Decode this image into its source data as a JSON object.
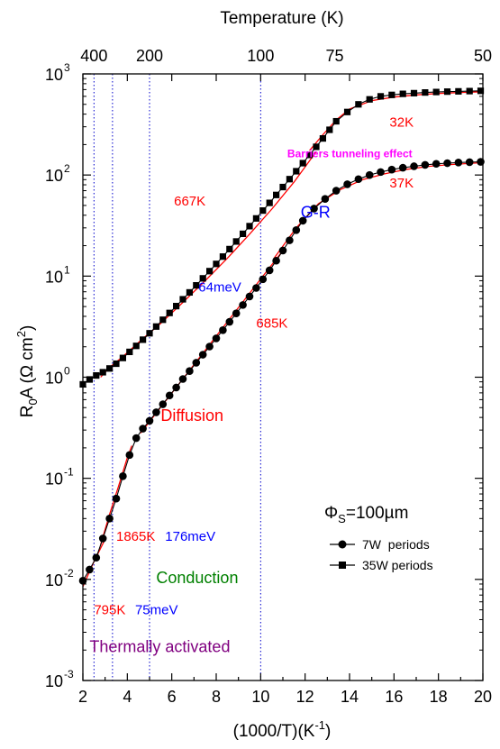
{
  "chart_data": {
    "type": "scatter",
    "xlabel": "(1000/T)(K",
    "xlabel_sup": "-1",
    "xlabel_end": ")",
    "ylabel_main": "R",
    "ylabel_sub": "0",
    "ylabel_rest": "A (Ω cm",
    "ylabel_sup": "2",
    "ylabel_end": ")",
    "top_axis_label": "Temperature (K)",
    "x_range": [
      2,
      20
    ],
    "y_range": [
      0.001,
      1000
    ],
    "y_scale": "log",
    "x_ticks": [
      2,
      4,
      6,
      8,
      10,
      12,
      14,
      16,
      18,
      20
    ],
    "x_tick_labels": [
      "2",
      "4",
      "6",
      "8",
      "10",
      "12",
      "14",
      "16",
      "18",
      "20"
    ],
    "y_ticks": [
      {
        "value": 0.001,
        "base": "10",
        "exp": "-3"
      },
      {
        "value": 0.01,
        "base": "10",
        "exp": "-2"
      },
      {
        "value": 0.1,
        "base": "10",
        "exp": "-1"
      },
      {
        "value": 1,
        "base": "10",
        "exp": "0"
      },
      {
        "value": 10,
        "base": "10",
        "exp": "1"
      },
      {
        "value": 100,
        "base": "10",
        "exp": "2"
      },
      {
        "value": 1000,
        "base": "10",
        "exp": "3"
      }
    ],
    "top_ticks": [
      {
        "x": 2.5,
        "label": "400"
      },
      {
        "x": 5.0,
        "label": "200"
      },
      {
        "x": 10.0,
        "label": "100"
      },
      {
        "x": 13.333,
        "label": "75"
      },
      {
        "x": 20.0,
        "label": "50"
      }
    ],
    "vertical_dotted_lines": [
      2.5,
      3.333,
      5.0,
      10.0
    ],
    "legend_position": "bottom-right",
    "series": [
      {
        "name": "7W  periods",
        "marker": "circle",
        "x": [
          2.0,
          2.3,
          2.6,
          2.9,
          3.2,
          3.5,
          3.8,
          4.1,
          4.4,
          4.7,
          5.0,
          5.3,
          5.6,
          5.9,
          6.2,
          6.5,
          6.8,
          7.1,
          7.4,
          7.7,
          8.0,
          8.3,
          8.6,
          8.9,
          9.2,
          9.5,
          9.8,
          10.1,
          10.4,
          10.7,
          11.0,
          11.3,
          11.6,
          11.9,
          12.4,
          12.9,
          13.4,
          13.9,
          14.4,
          14.9,
          15.4,
          15.9,
          16.4,
          16.9,
          17.4,
          17.9,
          18.4,
          18.9,
          19.4,
          19.9
        ],
        "values": [
          0.0097,
          0.0125,
          0.0164,
          0.0254,
          0.04,
          0.063,
          0.105,
          0.17,
          0.25,
          0.31,
          0.37,
          0.45,
          0.54,
          0.66,
          0.79,
          0.96,
          1.15,
          1.39,
          1.67,
          2.01,
          2.42,
          2.92,
          3.53,
          4.28,
          5.18,
          6.29,
          7.63,
          9.3,
          11.4,
          14.2,
          17.9,
          22.6,
          28.5,
          35.3,
          46.5,
          58,
          70,
          81,
          91,
          100,
          107,
          113,
          118,
          122,
          126,
          129,
          131,
          133,
          134,
          135
        ]
      },
      {
        "name": "35W periods",
        "marker": "square",
        "x": [
          2.0,
          2.3,
          2.6,
          2.9,
          3.2,
          3.5,
          3.8,
          4.1,
          4.4,
          4.7,
          5.0,
          5.3,
          5.6,
          5.9,
          6.2,
          6.5,
          6.8,
          7.1,
          7.4,
          7.7,
          8.0,
          8.3,
          8.6,
          8.9,
          9.2,
          9.5,
          9.8,
          10.1,
          10.4,
          10.7,
          11.0,
          11.3,
          11.6,
          11.9,
          12.2,
          12.5,
          12.8,
          13.1,
          13.4,
          13.9,
          14.4,
          14.9,
          15.4,
          15.9,
          16.4,
          16.9,
          17.4,
          17.9,
          18.4,
          18.9,
          19.4,
          19.9
        ],
        "values": [
          0.85,
          0.95,
          1.04,
          1.12,
          1.22,
          1.36,
          1.55,
          1.78,
          2.04,
          2.35,
          2.72,
          3.17,
          3.7,
          4.32,
          5.05,
          5.9,
          6.9,
          8.1,
          9.5,
          11.2,
          13.2,
          15.6,
          18.5,
          22.0,
          26.2,
          31.2,
          37.2,
          44.5,
          53.0,
          63.5,
          76.0,
          91.0,
          109,
          131,
          158,
          190,
          230,
          280,
          340,
          420,
          500,
          560,
          600,
          620,
          635,
          645,
          655,
          662,
          668,
          672,
          676,
          680
        ]
      }
    ],
    "fit_lines": [
      {
        "x": [
          2.0,
          2.5,
          3.0
        ],
        "values": [
          0.0085,
          0.015,
          0.025
        ]
      },
      {
        "x": [
          2.8,
          3.2,
          3.6,
          4.0,
          4.2
        ],
        "values": [
          0.022,
          0.044,
          0.083,
          0.16,
          0.21
        ]
      },
      {
        "x": [
          4.6,
          11.0
        ],
        "values": [
          0.28,
          17.9
        ]
      },
      {
        "x": [
          10.6,
          11.6,
          12.6,
          13.6,
          14.6,
          15.6,
          16.6,
          17.6,
          18.6,
          19.6,
          20.0
        ],
        "values": [
          15,
          30,
          52,
          72,
          90,
          103,
          114,
          122,
          127,
          131,
          133
        ]
      },
      {
        "x": [
          2.8,
          3.2,
          3.8,
          4.6,
          5.5,
          6.5,
          7.5,
          8.5,
          9.5,
          10.5,
          11.5,
          12.5
        ],
        "values": [
          1.0,
          1.25,
          1.6,
          2.3,
          3.4,
          5.5,
          9.0,
          15.0,
          26.0,
          46.0,
          85.0,
          170.0
        ]
      },
      {
        "x": [
          12.2,
          12.8,
          13.4,
          14.0,
          15.0,
          16.0,
          17.0,
          18.0,
          19.0,
          20.0
        ],
        "values": [
          175,
          250,
          350,
          450,
          545,
          590,
          620,
          640,
          655,
          665
        ]
      }
    ],
    "annotations": [
      {
        "text": "32K",
        "x": 15.8,
        "y": 300,
        "color": "#ff0000",
        "size": 15,
        "weight": "normal"
      },
      {
        "text": "Barriers tunneling effect",
        "x": 11.2,
        "y": 150,
        "color": "#ff00ff",
        "size": 12,
        "weight": "bold"
      },
      {
        "text": "37K",
        "x": 15.8,
        "y": 75,
        "color": "#ff0000",
        "size": 15,
        "weight": "normal"
      },
      {
        "text": "667K",
        "x": 6.1,
        "y": 50,
        "color": "#ff0000",
        "size": 15,
        "weight": "normal"
      },
      {
        "text": "G-R",
        "x": 11.8,
        "y": 38,
        "color": "#0000ff",
        "size": 18,
        "weight": "normal"
      },
      {
        "text": "64meV",
        "x": 7.2,
        "y": 7.0,
        "color": "#0000ff",
        "size": 15,
        "weight": "normal"
      },
      {
        "text": "685K",
        "x": 9.8,
        "y": 3.1,
        "color": "#ff0000",
        "size": 15,
        "weight": "normal"
      },
      {
        "text": "Diffusion",
        "x": 5.5,
        "y": 0.37,
        "color": "#ff0000",
        "size": 18,
        "weight": "normal"
      },
      {
        "text": "1865K",
        "x": 3.5,
        "y": 0.024,
        "color": "#ff0000",
        "size": 15,
        "weight": "normal"
      },
      {
        "text": "176meV",
        "x": 5.7,
        "y": 0.024,
        "color": "#0000ff",
        "size": 15,
        "weight": "normal"
      },
      {
        "text": "Conduction",
        "x": 5.3,
        "y": 0.0092,
        "color": "#008000",
        "size": 18,
        "weight": "normal"
      },
      {
        "text": "795K",
        "x": 2.5,
        "y": 0.0045,
        "color": "#ff0000",
        "size": 15,
        "weight": "normal"
      },
      {
        "text": "75meV",
        "x": 4.35,
        "y": 0.0045,
        "color": "#0000ff",
        "size": 15,
        "weight": "normal"
      },
      {
        "text": "Thermally activated",
        "x": 2.3,
        "y": 0.0019,
        "color": "#800080",
        "size": 18,
        "weight": "normal"
      }
    ],
    "phi_label": {
      "main": "Φ",
      "sub": "S",
      "rest": "=100µm"
    },
    "grid": false
  }
}
